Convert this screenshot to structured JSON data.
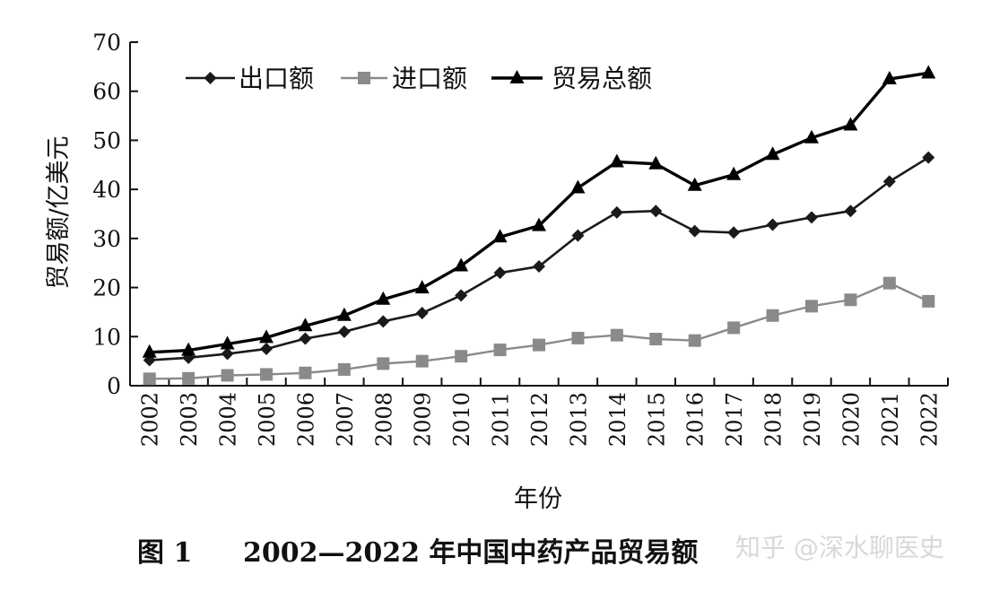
{
  "chart_data": {
    "type": "line",
    "title": "",
    "xlabel": "年份",
    "ylabel": "贸易额/亿美元",
    "ylim": [
      0,
      70
    ],
    "yticks": [
      0,
      10,
      20,
      30,
      40,
      50,
      60,
      70
    ],
    "grid": false,
    "legend_position": "top-left",
    "categories": [
      "2002",
      "2003",
      "2004",
      "2005",
      "2006",
      "2007",
      "2008",
      "2009",
      "2010",
      "2011",
      "2012",
      "2013",
      "2014",
      "2015",
      "2016",
      "2017",
      "2018",
      "2019",
      "2020",
      "2021",
      "2022"
    ],
    "series": [
      {
        "name": "出口额",
        "marker": "diamond",
        "color": "#1a1a1a",
        "values": [
          5.2,
          5.7,
          6.5,
          7.5,
          9.6,
          11.0,
          13.1,
          14.8,
          18.4,
          23.0,
          24.3,
          30.6,
          35.3,
          35.6,
          31.5,
          31.2,
          32.8,
          34.3,
          35.6,
          41.6,
          46.5
        ]
      },
      {
        "name": "进口额",
        "marker": "square",
        "color": "#8a8a8a",
        "values": [
          1.4,
          1.5,
          2.1,
          2.3,
          2.6,
          3.3,
          4.5,
          5.0,
          6.0,
          7.3,
          8.3,
          9.7,
          10.3,
          9.5,
          9.2,
          11.8,
          14.3,
          16.2,
          17.5,
          20.9,
          17.2
        ]
      },
      {
        "name": "贸易总额",
        "marker": "triangle",
        "color": "#000000",
        "values": [
          6.8,
          7.2,
          8.5,
          9.8,
          12.2,
          14.3,
          17.6,
          19.9,
          24.4,
          30.3,
          32.6,
          40.3,
          45.6,
          45.2,
          40.8,
          43.0,
          47.1,
          50.5,
          53.1,
          62.5,
          63.7
        ]
      }
    ]
  },
  "caption": {
    "figure_label": "图 1",
    "title": "2002—2022 年中国中药产品贸易额"
  },
  "watermark": {
    "text": "知乎 @深水聊医史"
  }
}
